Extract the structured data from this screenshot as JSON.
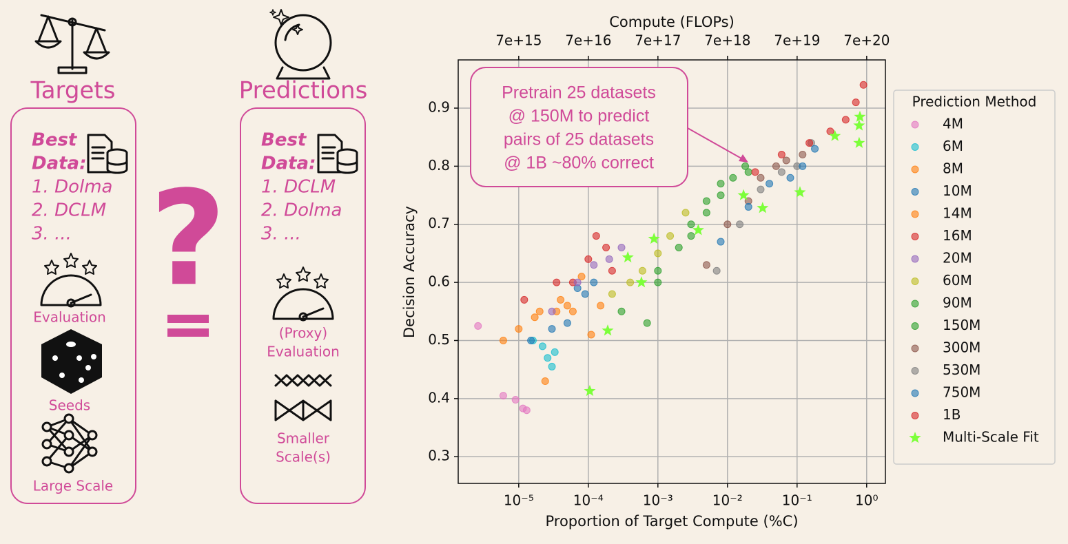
{
  "targets": {
    "title": "Targets",
    "best": [
      "Best",
      "Data:"
    ],
    "ranking": [
      "1. Dolma",
      "2. DCLM",
      "3. ..."
    ],
    "labels": [
      [
        "Evaluation"
      ],
      [
        "Seeds"
      ],
      [
        "Large Scale"
      ]
    ]
  },
  "predictions": {
    "title": "Predictions",
    "best": [
      "Best",
      "Data:"
    ],
    "ranking": [
      "1. DCLM",
      "2. Dolma",
      "3. ..."
    ],
    "labels": [
      [
        "(Proxy)",
        "Evaluation"
      ],
      [
        "Smaller",
        "Scale(s)"
      ]
    ]
  },
  "question": "?",
  "chart_data": {
    "type": "scatter",
    "xlabel": "Proportion of Target Compute (%C)",
    "x2label": "Compute (FLOPs)",
    "ylabel": "Decision Accuracy",
    "xscale": "log",
    "xlim": [
      1.35e-06,
      1.86
    ],
    "xticks": [
      {
        "value": 1e-05,
        "label": "10⁻⁵"
      },
      {
        "value": 0.0001,
        "label": "10⁻⁴"
      },
      {
        "value": 0.001,
        "label": "10⁻³"
      },
      {
        "value": 0.01,
        "label": "10⁻²"
      },
      {
        "value": 0.1,
        "label": "10⁻¹"
      },
      {
        "value": 1,
        "label": "10⁰"
      }
    ],
    "x2lim": [
      945000000000000.0,
      1.3e+21
    ],
    "x2ticks": [
      {
        "value": 7000000000000000.0,
        "label": "7e+15"
      },
      {
        "value": 7e+16,
        "label": "7e+16"
      },
      {
        "value": 7e+17,
        "label": "7e+17"
      },
      {
        "value": 7e+18,
        "label": "7e+18"
      },
      {
        "value": 7e+19,
        "label": "7e+19"
      },
      {
        "value": 7e+20,
        "label": "7e+20"
      }
    ],
    "ylim": [
      0.254,
      0.983
    ],
    "yticks": [
      0.3,
      0.4,
      0.5,
      0.6,
      0.7,
      0.8,
      0.9
    ],
    "grid": true,
    "legend": {
      "title": "Prediction Method",
      "position": "outside right"
    },
    "annotation": [
      "Pretrain 25 datasets",
      "@ 150M to predict",
      "pairs of 25 datasets",
      "@ 1B ~80% correct"
    ],
    "series": [
      {
        "name": "4M",
        "color": "#e377c2",
        "marker": "circle",
        "x": [
          2.6e-06,
          6e-06,
          9e-06,
          1.15e-05,
          1.3e-05
        ],
        "values": [
          0.525,
          0.405,
          0.398,
          0.383,
          0.38
        ]
      },
      {
        "name": "6M",
        "color": "#17becf",
        "marker": "circle",
        "x": [
          1.6e-05,
          2.2e-05,
          2.6e-05,
          3e-05,
          3.3e-05
        ],
        "values": [
          0.5,
          0.49,
          0.47,
          0.455,
          0.48
        ]
      },
      {
        "name": "8M",
        "color": "#ff7f0e",
        "marker": "circle",
        "x": [
          6e-06,
          1e-05,
          1.7e-05,
          2.4e-05,
          3.5e-05,
          5e-05
        ],
        "values": [
          0.5,
          0.52,
          0.54,
          0.43,
          0.55,
          0.56
        ]
      },
      {
        "name": "10M",
        "color": "#1f77b4",
        "marker": "circle",
        "x": [
          1.5e-05,
          3e-05,
          5e-05,
          7e-05,
          9e-05,
          0.00012
        ],
        "values": [
          0.5,
          0.52,
          0.53,
          0.59,
          0.58,
          0.6
        ]
      },
      {
        "name": "14M",
        "color": "#ff7f0e",
        "marker": "circle",
        "x": [
          2e-05,
          4e-05,
          6e-05,
          8e-05,
          0.00011,
          0.00015
        ],
        "values": [
          0.55,
          0.57,
          0.55,
          0.61,
          0.51,
          0.56
        ]
      },
      {
        "name": "16M",
        "color": "#d62728",
        "marker": "circle",
        "x": [
          1.2e-05,
          3.5e-05,
          6e-05,
          0.0001,
          0.00013,
          0.00018,
          0.00022
        ],
        "values": [
          0.57,
          0.6,
          0.6,
          0.64,
          0.68,
          0.66,
          0.62
        ]
      },
      {
        "name": "20M",
        "color": "#9467bd",
        "marker": "circle",
        "x": [
          3e-05,
          7e-05,
          0.00012,
          0.0002,
          0.0003
        ],
        "values": [
          0.55,
          0.6,
          0.63,
          0.64,
          0.66
        ]
      },
      {
        "name": "60M",
        "color": "#bcbd22",
        "marker": "circle",
        "x": [
          0.00022,
          0.0004,
          0.0006,
          0.001,
          0.0015,
          0.0025
        ],
        "values": [
          0.58,
          0.6,
          0.62,
          0.65,
          0.68,
          0.72
        ]
      },
      {
        "name": "90M",
        "color": "#2ca02c",
        "marker": "circle",
        "x": [
          0.0003,
          0.0007,
          0.001,
          0.002,
          0.003,
          0.005,
          0.008
        ],
        "values": [
          0.55,
          0.53,
          0.62,
          0.66,
          0.7,
          0.74,
          0.77
        ]
      },
      {
        "name": "150M",
        "color": "#2ca02c",
        "marker": "circle",
        "x": [
          0.001,
          0.003,
          0.005,
          0.008,
          0.012,
          0.018,
          0.02
        ],
        "values": [
          0.6,
          0.68,
          0.72,
          0.75,
          0.78,
          0.8,
          0.79
        ]
      },
      {
        "name": "300M",
        "color": "#8c564b",
        "marker": "circle",
        "x": [
          0.005,
          0.01,
          0.02,
          0.03,
          0.05,
          0.07,
          0.12
        ],
        "values": [
          0.63,
          0.7,
          0.74,
          0.78,
          0.8,
          0.81,
          0.82
        ]
      },
      {
        "name": "530M",
        "color": "#7f7f7f",
        "marker": "circle",
        "x": [
          0.007,
          0.015,
          0.03,
          0.06,
          0.1,
          0.16
        ],
        "values": [
          0.62,
          0.7,
          0.76,
          0.79,
          0.8,
          0.84
        ]
      },
      {
        "name": "750M",
        "color": "#1f77b4",
        "marker": "circle",
        "x": [
          0.008,
          0.02,
          0.04,
          0.08,
          0.12,
          0.18
        ],
        "values": [
          0.67,
          0.73,
          0.77,
          0.78,
          0.8,
          0.83
        ]
      },
      {
        "name": "1B",
        "color": "#d62728",
        "marker": "circle",
        "x": [
          0.025,
          0.06,
          0.15,
          0.3,
          0.5,
          0.7,
          0.9
        ],
        "values": [
          0.79,
          0.82,
          0.84,
          0.86,
          0.88,
          0.91,
          0.94
        ]
      },
      {
        "name": "Multi-Scale Fit",
        "color": "#7dff3a",
        "marker": "star",
        "x": [
          0.000105,
          0.00019,
          0.00037,
          0.00058,
          0.00088,
          0.0038,
          0.017,
          0.032,
          0.11,
          0.35,
          0.78,
          0.78,
          0.8
        ],
        "values": [
          0.413,
          0.517,
          0.643,
          0.6,
          0.675,
          0.69,
          0.75,
          0.728,
          0.755,
          0.852,
          0.84,
          0.87,
          0.885
        ]
      }
    ]
  }
}
